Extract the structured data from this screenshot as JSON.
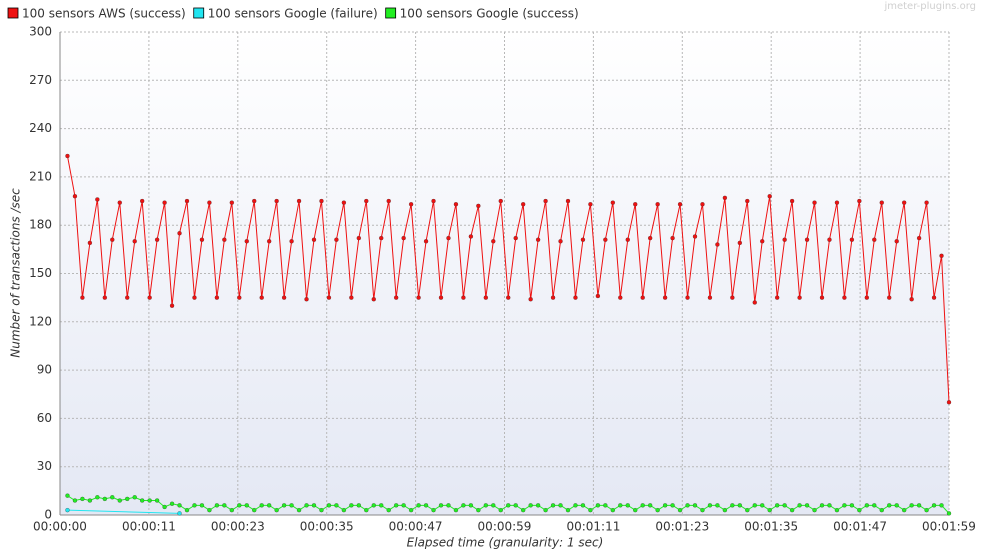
{
  "chart_data": {
    "type": "line",
    "watermark": "jmeter-plugins.org",
    "xlabel": "Elapsed time (granularity: 1 sec)",
    "ylabel": "Number of transactions /sec",
    "xlim": [
      0,
      119
    ],
    "ylim": [
      0,
      300
    ],
    "yticks": [
      0,
      30,
      60,
      90,
      120,
      150,
      180,
      210,
      240,
      270,
      300
    ],
    "xticks": [
      {
        "value": 0,
        "label": "00:00:00"
      },
      {
        "value": 11.9,
        "label": "00:00:11"
      },
      {
        "value": 23.8,
        "label": "00:00:23"
      },
      {
        "value": 35.7,
        "label": "00:00:35"
      },
      {
        "value": 47.6,
        "label": "00:00:47"
      },
      {
        "value": 59.5,
        "label": "00:00:59"
      },
      {
        "value": 71.4,
        "label": "00:01:11"
      },
      {
        "value": 83.3,
        "label": "00:01:23"
      },
      {
        "value": 95.2,
        "label": "00:01:35"
      },
      {
        "value": 107.1,
        "label": "00:01:47"
      },
      {
        "value": 119,
        "label": "00:01:59"
      }
    ],
    "grid": true,
    "series": [
      {
        "name": "100 sensors AWS (success)",
        "color": "#ee1111",
        "x": [
          1,
          2,
          3,
          4,
          5,
          6,
          7,
          8,
          9,
          10,
          11,
          12,
          13,
          14,
          15,
          16,
          17,
          18,
          19,
          20,
          21,
          22,
          23,
          24,
          25,
          26,
          27,
          28,
          29,
          30,
          31,
          32,
          33,
          34,
          35,
          36,
          37,
          38,
          39,
          40,
          41,
          42,
          43,
          44,
          45,
          46,
          47,
          48,
          49,
          50,
          51,
          52,
          53,
          54,
          55,
          56,
          57,
          58,
          59,
          60,
          61,
          62,
          63,
          64,
          65,
          66,
          67,
          68,
          69,
          70,
          71,
          72,
          73,
          74,
          75,
          76,
          77,
          78,
          79,
          80,
          81,
          82,
          83,
          84,
          85,
          86,
          87,
          88,
          89,
          90,
          91,
          92,
          93,
          94,
          95,
          96,
          97,
          98,
          99,
          100,
          101,
          102,
          103,
          104,
          105,
          106,
          107,
          108,
          109,
          110,
          111,
          112,
          113,
          114,
          115,
          116,
          117,
          118,
          119
        ],
        "values": [
          223,
          198,
          135,
          169,
          196,
          135,
          171,
          194,
          135,
          170,
          195,
          135,
          171,
          194,
          130,
          175,
          195,
          135,
          171,
          194,
          135,
          171,
          194,
          135,
          170,
          195,
          135,
          170,
          195,
          135,
          170,
          195,
          134,
          171,
          195,
          135,
          171,
          194,
          135,
          172,
          195,
          134,
          172,
          195,
          135,
          172,
          193,
          135,
          170,
          195,
          135,
          172,
          193,
          135,
          173,
          192,
          135,
          170,
          195,
          135,
          172,
          193,
          134,
          171,
          195,
          135,
          170,
          195,
          135,
          171,
          193,
          136,
          171,
          194,
          135,
          171,
          193,
          135,
          172,
          193,
          135,
          172,
          193,
          135,
          173,
          193,
          135,
          168,
          197,
          135,
          169,
          195,
          132,
          170,
          198,
          135,
          171,
          195,
          135,
          171,
          194,
          135,
          171,
          194,
          135,
          171,
          195,
          135,
          171,
          194,
          135,
          170,
          194,
          134,
          172,
          194,
          135,
          161,
          70
        ]
      },
      {
        "name": "100 sensors Google (failure)",
        "color": "#22e5f0",
        "x": [
          1,
          16
        ],
        "values": [
          3,
          1
        ]
      },
      {
        "name": "100 sensors Google (success)",
        "color": "#22ee22",
        "x": [
          1,
          2,
          3,
          4,
          5,
          6,
          7,
          8,
          9,
          10,
          11,
          12,
          13,
          14,
          15,
          16,
          17,
          18,
          19,
          20,
          21,
          22,
          23,
          24,
          25,
          26,
          27,
          28,
          29,
          30,
          31,
          32,
          33,
          34,
          35,
          36,
          37,
          38,
          39,
          40,
          41,
          42,
          43,
          44,
          45,
          46,
          47,
          48,
          49,
          50,
          51,
          52,
          53,
          54,
          55,
          56,
          57,
          58,
          59,
          60,
          61,
          62,
          63,
          64,
          65,
          66,
          67,
          68,
          69,
          70,
          71,
          72,
          73,
          74,
          75,
          76,
          77,
          78,
          79,
          80,
          81,
          82,
          83,
          84,
          85,
          86,
          87,
          88,
          89,
          90,
          91,
          92,
          93,
          94,
          95,
          96,
          97,
          98,
          99,
          100,
          101,
          102,
          103,
          104,
          105,
          106,
          107,
          108,
          109,
          110,
          111,
          112,
          113,
          114,
          115,
          116,
          117,
          118,
          119
        ],
        "values": [
          12,
          9,
          10,
          9,
          11,
          10,
          11,
          9,
          10,
          11,
          9,
          9,
          9,
          5,
          7,
          6,
          3,
          6,
          6,
          3,
          6,
          6,
          3,
          6,
          6,
          3,
          6,
          6,
          3,
          6,
          6,
          3,
          6,
          6,
          3,
          6,
          6,
          3,
          6,
          6,
          3,
          6,
          6,
          3,
          6,
          6,
          3,
          6,
          6,
          3,
          6,
          6,
          3,
          6,
          6,
          3,
          6,
          6,
          3,
          6,
          6,
          3,
          6,
          6,
          3,
          6,
          6,
          3,
          6,
          6,
          3,
          6,
          6,
          3,
          6,
          6,
          3,
          6,
          6,
          3,
          6,
          6,
          3,
          6,
          6,
          3,
          6,
          6,
          3,
          6,
          6,
          3,
          6,
          6,
          3,
          6,
          6,
          3,
          6,
          6,
          3,
          6,
          6,
          3,
          6,
          6,
          3,
          6,
          6,
          3,
          6,
          6,
          3,
          6,
          6,
          3,
          6,
          6,
          1
        ]
      }
    ]
  }
}
